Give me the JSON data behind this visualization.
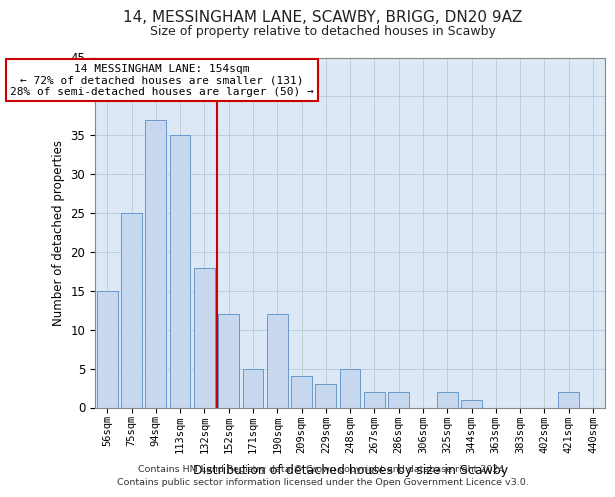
{
  "title": "14, MESSINGHAM LANE, SCAWBY, BRIGG, DN20 9AZ",
  "subtitle": "Size of property relative to detached houses in Scawby",
  "xlabel": "Distribution of detached houses by size in Scawby",
  "ylabel": "Number of detached properties",
  "bar_color": "#c8d8ee",
  "bar_edge_color": "#6699cc",
  "categories": [
    "56sqm",
    "75sqm",
    "94sqm",
    "113sqm",
    "132sqm",
    "152sqm",
    "171sqm",
    "190sqm",
    "209sqm",
    "229sqm",
    "248sqm",
    "267sqm",
    "286sqm",
    "306sqm",
    "325sqm",
    "344sqm",
    "363sqm",
    "383sqm",
    "402sqm",
    "421sqm",
    "440sqm"
  ],
  "values": [
    15,
    25,
    37,
    35,
    18,
    12,
    5,
    12,
    4,
    3,
    5,
    2,
    2,
    0,
    2,
    1,
    0,
    0,
    0,
    2,
    0
  ],
  "ylim": [
    0,
    45
  ],
  "yticks": [
    0,
    5,
    10,
    15,
    20,
    25,
    30,
    35,
    40,
    45
  ],
  "vline_index": 5,
  "vline_color": "#cc0000",
  "annotation_title": "14 MESSINGHAM LANE: 154sqm",
  "annotation_line1": "← 72% of detached houses are smaller (131)",
  "annotation_line2": "28% of semi-detached houses are larger (50) →",
  "annotation_box_color": "#ffffff",
  "annotation_box_edge": "#cc0000",
  "footer_line1": "Contains HM Land Registry data © Crown copyright and database right 2024.",
  "footer_line2": "Contains public sector information licensed under the Open Government Licence v3.0.",
  "background_color": "#ffffff",
  "plot_bg_color": "#dce8f5",
  "grid_color": "#b8c8d8"
}
